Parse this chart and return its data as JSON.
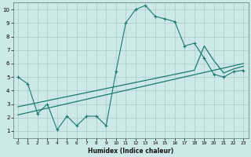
{
  "xlabel": "Humidex (Indice chaleur)",
  "bg_color": "#cce8e8",
  "grid_color": "#aacccc",
  "line_color": "#1a7a6e",
  "xlim": [
    -0.5,
    23.5
  ],
  "ylim": [
    0.5,
    10.5
  ],
  "xticks": [
    0,
    1,
    2,
    3,
    4,
    5,
    6,
    7,
    8,
    9,
    10,
    11,
    12,
    13,
    14,
    15,
    16,
    17,
    18,
    19,
    20,
    21,
    22,
    23
  ],
  "yticks": [
    1,
    2,
    3,
    4,
    5,
    6,
    7,
    8,
    9,
    10
  ],
  "series1_x": [
    0,
    1,
    2,
    3,
    4,
    5,
    6,
    7,
    8,
    9,
    10,
    11,
    12,
    13,
    14,
    15,
    16,
    17,
    18,
    19,
    20,
    21,
    22,
    23
  ],
  "series1_y": [
    5.0,
    4.5,
    2.3,
    3.0,
    1.1,
    2.1,
    1.4,
    2.1,
    2.1,
    1.4,
    5.4,
    9.0,
    10.0,
    10.3,
    9.5,
    9.3,
    9.1,
    7.3,
    7.5,
    6.4,
    5.2,
    5.0,
    5.4,
    5.5
  ],
  "trend1_x": [
    0,
    23
  ],
  "trend1_y": [
    2.2,
    6.0
  ],
  "trend2_x": [
    0,
    18,
    19,
    20,
    21,
    22,
    23
  ],
  "trend2_y": [
    2.8,
    5.5,
    7.3,
    6.2,
    5.3,
    5.6,
    5.8
  ]
}
